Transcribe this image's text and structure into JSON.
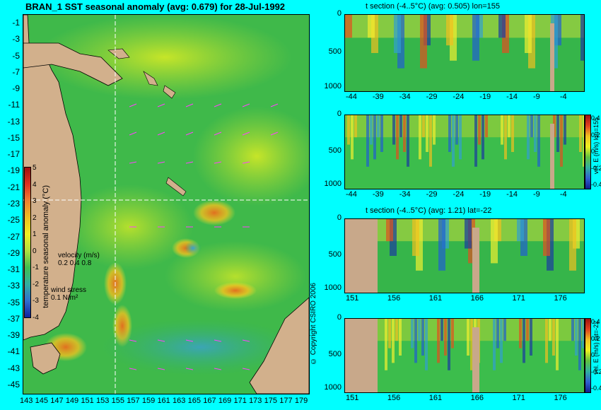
{
  "map": {
    "title": "BRAN_1  SST seasonal anomaly (avg: 0.679) for 28-Jul-1992",
    "lat_ticks": [
      "-1",
      "-3",
      "-5",
      "-7",
      "-9",
      "-11",
      "-13",
      "-15",
      "-17",
      "-19",
      "-21",
      "-23",
      "-25",
      "-27",
      "-29",
      "-31",
      "-33",
      "-35",
      "-37",
      "-39",
      "-41",
      "-43",
      "-45"
    ],
    "lon_ticks": [
      "143",
      "145",
      "147",
      "149",
      "151",
      "153",
      "155",
      "157",
      "159",
      "161",
      "163",
      "165",
      "167",
      "169",
      "171",
      "173",
      "175",
      "177",
      "179"
    ],
    "colorbar": {
      "ticks": [
        "5",
        "4",
        "3",
        "2",
        "1",
        "0",
        "-1",
        "-2",
        "-3",
        "-4"
      ],
      "label": "temperature seasonal anomaly (°C)"
    },
    "velocity_legend": {
      "label": "velocity (m/s)",
      "values": "0.2 0.4 0.8"
    },
    "wind_legend": {
      "label": "wind stress",
      "value": "0.1 N/m²"
    },
    "copyright": "© Copyright CSIRO 2006"
  },
  "panels": [
    {
      "title": "t section (-4..5°C) (avg: 0.505) lon=155",
      "x_ticks": [
        "-44",
        "-39",
        "-34",
        "-29",
        "-24",
        "-19",
        "-14",
        "-9",
        "-4"
      ],
      "y_ticks": [
        "0",
        "500",
        "1000"
      ]
    },
    {
      "title": "",
      "x_ticks": [
        "-44",
        "-39",
        "-34",
        "-29",
        "-24",
        "-19",
        "-14",
        "-9",
        "-4"
      ],
      "y_ticks": [
        "0",
        "500",
        "1000"
      ],
      "colorbar_ticks": [
        "0.4",
        "0.2",
        "0",
        "-0.2",
        "-0.4"
      ],
      "colorbar_label": "vel. E (m/s) lon=155"
    },
    {
      "title": "t section (-4..5°C) (avg: 1.21) lat=-22",
      "x_ticks": [
        "151",
        "156",
        "161",
        "166",
        "171",
        "176"
      ],
      "y_ticks": [
        "0",
        "500",
        "1000"
      ]
    },
    {
      "title": "",
      "x_ticks": [
        "151",
        "156",
        "161",
        "166",
        "171",
        "176"
      ],
      "y_ticks": [
        "0",
        "500",
        "1000"
      ],
      "colorbar_ticks": [
        "0.4",
        "0.2",
        "0",
        "-0.2",
        "-0.4"
      ],
      "colorbar_label": "vel. E (m/s) lat=-22"
    }
  ],
  "colors": {
    "background": "#00ffff",
    "land": "#d2b08c",
    "ocean": "#2db84a"
  }
}
